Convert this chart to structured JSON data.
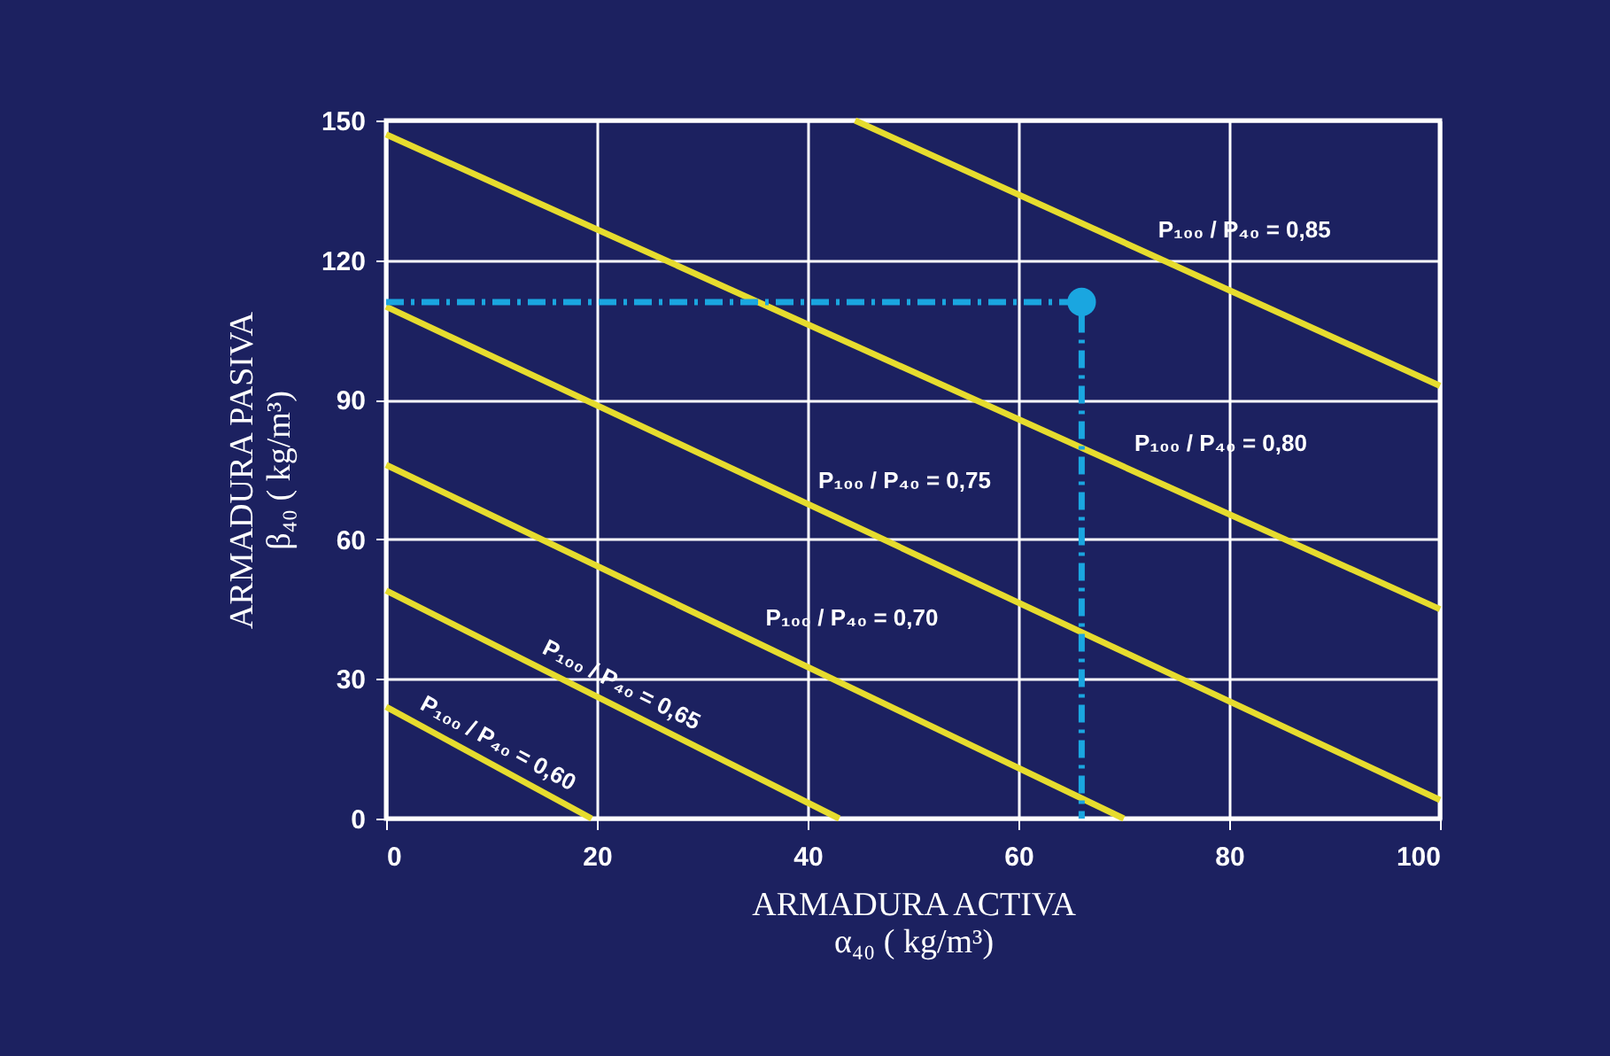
{
  "chart_data": {
    "type": "line",
    "xlabel": "ARMADURA ACTIVA\nα₄₀ ( kg/m³)",
    "ylabel": "ARMADURA PASIVA\nβ₄₀ ( kg/m³)",
    "xlim": [
      0,
      100
    ],
    "xticks": [
      0,
      20,
      40,
      60,
      80,
      100
    ],
    "ylim": [
      0,
      150
    ],
    "yticks": [
      0,
      30,
      60,
      90,
      120,
      150
    ],
    "grid": true,
    "series": [
      {
        "name": "P₁₀₀ / P₄₀ = 0,60",
        "color": "#e6dc2e",
        "x": [
          0,
          19.5
        ],
        "values": [
          24,
          0
        ]
      },
      {
        "name": "P₁₀₀ / P₄₀ = 0,65",
        "color": "#e6dc2e",
        "x": [
          0,
          43
        ],
        "values": [
          49,
          0
        ]
      },
      {
        "name": "P₁₀₀ / P₄₀ = 0,70",
        "color": "#e6dc2e",
        "x": [
          0,
          70
        ],
        "values": [
          76,
          0
        ]
      },
      {
        "name": "P₁₀₀ / P₄₀ = 0,75",
        "color": "#e6dc2e",
        "x": [
          0,
          100
        ],
        "values": [
          110,
          4
        ]
      },
      {
        "name": "P₁₀₀ / P₄₀ = 0,80",
        "color": "#e6dc2e",
        "x": [
          0,
          100
        ],
        "values": [
          147,
          45
        ]
      },
      {
        "name": "P₁₀₀ / P₄₀ = 0,85",
        "color": "#e6dc2e",
        "x": [
          44.5,
          100
        ],
        "values": [
          150,
          93
        ]
      },
      {
        "color": "#1aa6e0",
        "line_style": "dashed",
        "x": [
          0,
          66,
          66
        ],
        "values": [
          111,
          111,
          0
        ]
      },
      {
        "type": "scatter",
        "marker": "circle",
        "color": "#1aa6e0",
        "x": [
          66
        ],
        "values": [
          111
        ]
      }
    ]
  }
}
